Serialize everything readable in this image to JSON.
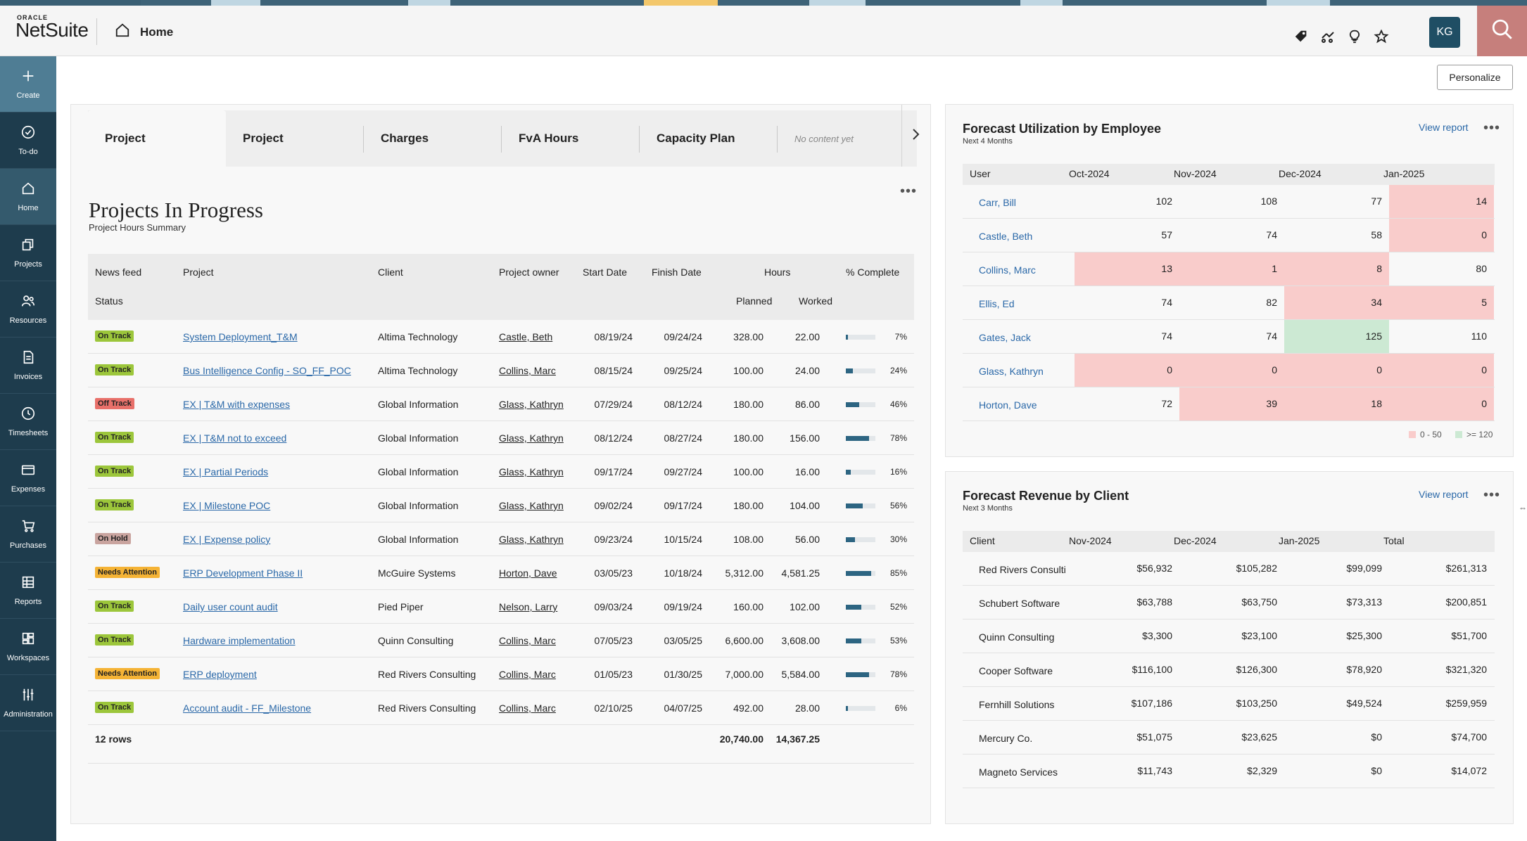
{
  "app": {
    "logo_oracle": "ORACLE",
    "logo_name": "NetSuite",
    "breadcrumb": "Home",
    "user_initials": "KG",
    "personalize": "Personalize"
  },
  "sidebar": [
    {
      "label": "Create",
      "icon": "plus-icon"
    },
    {
      "label": "To-do",
      "icon": "check-circle-icon"
    },
    {
      "label": "Home",
      "icon": "home-icon"
    },
    {
      "label": "Projects",
      "icon": "projects-icon"
    },
    {
      "label": "Resources",
      "icon": "people-icon"
    },
    {
      "label": "Invoices",
      "icon": "document-icon"
    },
    {
      "label": "Timesheets",
      "icon": "clock-icon"
    },
    {
      "label": "Expenses",
      "icon": "card-icon"
    },
    {
      "label": "Purchases",
      "icon": "cart-icon"
    },
    {
      "label": "Reports",
      "icon": "grid-icon"
    },
    {
      "label": "Workspaces",
      "icon": "workspace-icon"
    },
    {
      "label": "Administration",
      "icon": "sliders-icon"
    }
  ],
  "tabs": [
    "Project",
    "Project",
    "Charges",
    "FvA Hours",
    "Capacity Plan"
  ],
  "tabs_empty": "No content yet",
  "projects": {
    "title": "Projects In Progress",
    "subtitle": "Project Hours Summary",
    "headers": {
      "news_feed": "News feed",
      "project": "Project",
      "client": "Client",
      "owner": "Project owner",
      "start": "Start Date",
      "finish": "Finish Date",
      "hours": "Hours",
      "complete": "% Complete",
      "status": "Status",
      "planned": "Planned",
      "worked": "Worked"
    },
    "rows": [
      {
        "status": "On Track",
        "project": "System Deployment_T&M",
        "client": "Altima Technology",
        "owner": "Castle, Beth",
        "start": "08/19/24",
        "finish": "09/24/24",
        "planned": "328.00",
        "worked": "22.00",
        "pct": "7%",
        "pctv": 7
      },
      {
        "status": "On Track",
        "project": "Bus Intelligence Config - SO_FF_POC",
        "client": "Altima Technology",
        "owner": "Collins, Marc",
        "start": "08/15/24",
        "finish": "09/25/24",
        "planned": "100.00",
        "worked": "24.00",
        "pct": "24%",
        "pctv": 24
      },
      {
        "status": "Off Track",
        "project": "EX | T&M with expenses",
        "client": "Global Information",
        "owner": "Glass, Kathryn",
        "start": "07/29/24",
        "finish": "08/12/24",
        "planned": "180.00",
        "worked": "86.00",
        "pct": "46%",
        "pctv": 46
      },
      {
        "status": "On Track",
        "project": "EX | T&M not to exceed",
        "client": "Global Information",
        "owner": "Glass, Kathryn",
        "start": "08/12/24",
        "finish": "08/27/24",
        "planned": "180.00",
        "worked": "156.00",
        "pct": "78%",
        "pctv": 78
      },
      {
        "status": "On Track",
        "project": "EX | Partial Periods",
        "client": "Global Information",
        "owner": "Glass, Kathryn",
        "start": "09/17/24",
        "finish": "09/27/24",
        "planned": "100.00",
        "worked": "16.00",
        "pct": "16%",
        "pctv": 16
      },
      {
        "status": "On Track",
        "project": "EX | Milestone POC",
        "client": "Global Information",
        "owner": "Glass, Kathryn",
        "start": "09/02/24",
        "finish": "09/17/24",
        "planned": "180.00",
        "worked": "104.00",
        "pct": "56%",
        "pctv": 56
      },
      {
        "status": "On Hold",
        "project": "EX | Expense policy",
        "client": "Global Information",
        "owner": "Glass, Kathryn",
        "start": "09/23/24",
        "finish": "10/15/24",
        "planned": "108.00",
        "worked": "56.00",
        "pct": "30%",
        "pctv": 30
      },
      {
        "status": "Needs Attention",
        "project": "ERP Development Phase II",
        "client": "McGuire Systems",
        "owner": "Horton, Dave",
        "start": "03/05/23",
        "finish": "10/18/24",
        "planned": "5,312.00",
        "worked": "4,581.25",
        "pct": "85%",
        "pctv": 85
      },
      {
        "status": "On Track",
        "project": "Daily user count audit",
        "client": "Pied Piper",
        "owner": "Nelson, Larry",
        "start": "09/03/24",
        "finish": "09/19/24",
        "planned": "160.00",
        "worked": "102.00",
        "pct": "52%",
        "pctv": 52
      },
      {
        "status": "On Track",
        "project": "Hardware implementation",
        "client": "Quinn Consulting",
        "owner": "Collins, Marc",
        "start": "07/05/23",
        "finish": "03/05/25",
        "planned": "6,600.00",
        "worked": "3,608.00",
        "pct": "53%",
        "pctv": 53
      },
      {
        "status": "Needs Attention",
        "project": "ERP deployment",
        "client": "Red Rivers Consulting",
        "owner": "Collins, Marc",
        "start": "01/05/23",
        "finish": "01/30/25",
        "planned": "7,000.00",
        "worked": "5,584.00",
        "pct": "78%",
        "pctv": 78
      },
      {
        "status": "On Track",
        "project": "Account audit - FF_Milestone",
        "client": "Red Rivers Consulting",
        "owner": "Collins, Marc",
        "start": "02/10/25",
        "finish": "04/07/25",
        "planned": "492.00",
        "worked": "28.00",
        "pct": "6%",
        "pctv": 6
      }
    ],
    "footer": {
      "rows": "12 rows",
      "planned": "20,740.00",
      "worked": "14,367.25"
    }
  },
  "status_colors": {
    "On Track": "#9cc63b",
    "Off Track": "#e8706a",
    "On Hold": "#c9a49f",
    "Needs Attention": "#f5b335"
  },
  "utilization": {
    "title": "Forecast Utilization by Employee",
    "subtitle": "Next 4 Months",
    "view_report": "View report",
    "columns": [
      "User",
      "Oct-2024",
      "Nov-2024",
      "Dec-2024",
      "Jan-2025"
    ],
    "rows": [
      {
        "user": "Carr, Bill",
        "values": [
          "102",
          "108",
          "77",
          "14"
        ],
        "flags": [
          "",
          "",
          "",
          "low"
        ]
      },
      {
        "user": "Castle, Beth",
        "values": [
          "57",
          "74",
          "58",
          "0"
        ],
        "flags": [
          "",
          "",
          "",
          "low"
        ]
      },
      {
        "user": "Collins, Marc",
        "values": [
          "13",
          "1",
          "8",
          "80"
        ],
        "flags": [
          "low",
          "low",
          "low",
          ""
        ]
      },
      {
        "user": "Ellis, Ed",
        "values": [
          "74",
          "82",
          "34",
          "5"
        ],
        "flags": [
          "",
          "",
          "low",
          "low"
        ]
      },
      {
        "user": "Gates, Jack",
        "values": [
          "74",
          "74",
          "125",
          "110"
        ],
        "flags": [
          "",
          "",
          "high",
          ""
        ]
      },
      {
        "user": "Glass, Kathryn",
        "values": [
          "0",
          "0",
          "0",
          "0"
        ],
        "flags": [
          "low",
          "low",
          "low",
          "low"
        ]
      },
      {
        "user": "Horton, Dave",
        "values": [
          "72",
          "39",
          "18",
          "0"
        ],
        "flags": [
          "",
          "low",
          "low",
          "low"
        ]
      }
    ],
    "legend_low": "0 - 50",
    "legend_high": ">= 120",
    "low_color": "#f9cccb",
    "high_color": "#cce9d3"
  },
  "revenue": {
    "title": "Forecast Revenue by Client",
    "subtitle": "Next 3 Months",
    "view_report": "View report",
    "columns": [
      "Client",
      "Nov-2024",
      "Dec-2024",
      "Jan-2025",
      "Total"
    ],
    "rows": [
      {
        "client": "Red Rivers Consulti",
        "values": [
          "$56,932",
          "$105,282",
          "$99,099",
          "$261,313"
        ]
      },
      {
        "client": "Schubert Software",
        "values": [
          "$63,788",
          "$63,750",
          "$73,313",
          "$200,851"
        ]
      },
      {
        "client": "Quinn Consulting",
        "values": [
          "$3,300",
          "$23,100",
          "$25,300",
          "$51,700"
        ]
      },
      {
        "client": "Cooper Software",
        "values": [
          "$116,100",
          "$126,300",
          "$78,920",
          "$321,320"
        ]
      },
      {
        "client": "Fernhill Solutions",
        "values": [
          "$107,186",
          "$103,250",
          "$49,524",
          "$259,959"
        ]
      },
      {
        "client": "Mercury Co.",
        "values": [
          "$51,075",
          "$23,625",
          "$0",
          "$74,700"
        ]
      },
      {
        "client": "Magneto Services",
        "values": [
          "$11,743",
          "$2,329",
          "$0",
          "$14,072"
        ]
      }
    ]
  }
}
